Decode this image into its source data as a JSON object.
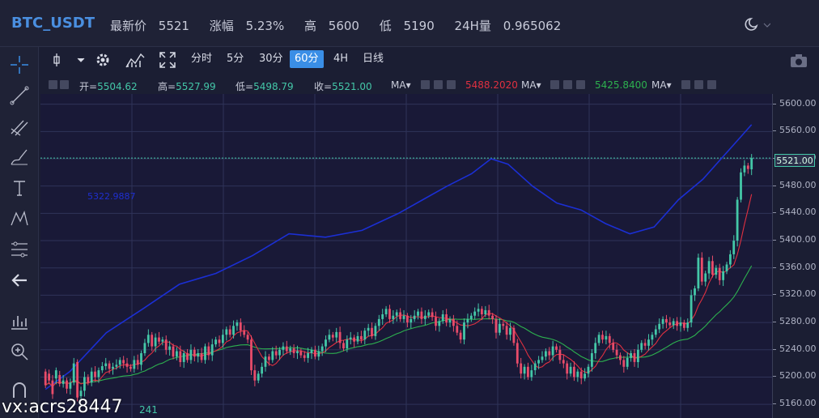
{
  "header": {
    "pair": "BTC_USDT",
    "last_label": "最新价",
    "last": "5521",
    "change_label": "涨幅",
    "change": "5.23%",
    "high_label": "高",
    "high": "5600",
    "low_label": "低",
    "low": "5190",
    "vol_label": "24H量",
    "vol": "0.965062"
  },
  "toolbar": {
    "intervals": [
      "分时",
      "5分",
      "30分",
      "60分",
      "4H",
      "日线"
    ],
    "active": "60分"
  },
  "legend": {
    "open_label": "开=",
    "open": "5504.62",
    "high_label": "高=",
    "high": "5527.99",
    "low_label": "低=",
    "low": "5498.79",
    "close_label": "收=",
    "close": "5521.00",
    "ma_label": "MA",
    "ma1": "5488.2020",
    "ma2": "5425.8400",
    "ma1_color": "#e03040",
    "ma2_color": "#2db14f"
  },
  "sub_indicator": "5322.9887",
  "chart_data": {
    "type": "candlestick",
    "y_ticks": [
      "5600.00",
      "5560.00",
      "5520.00",
      "5480.00",
      "5440.00",
      "5400.00",
      "5360.00",
      "5320.00",
      "5280.00",
      "5240.00",
      "5200.00",
      "5160.00"
    ],
    "ylim": [
      5140,
      5615
    ],
    "current_price": "5521.00",
    "up_color": "#44c7a8",
    "down_color": "#e94c6a",
    "blue_line_color": "#1b2fd4",
    "blue_line": [
      [
        0,
        5182
      ],
      [
        10,
        5208
      ],
      [
        25,
        5265
      ],
      [
        40,
        5300
      ],
      [
        55,
        5336
      ],
      [
        70,
        5352
      ],
      [
        85,
        5378
      ],
      [
        100,
        5410
      ],
      [
        115,
        5405
      ],
      [
        130,
        5415
      ],
      [
        145,
        5440
      ],
      [
        155,
        5460
      ],
      [
        165,
        5480
      ],
      [
        175,
        5498
      ],
      [
        183,
        5520
      ],
      [
        190,
        5512
      ],
      [
        200,
        5480
      ],
      [
        210,
        5455
      ],
      [
        220,
        5445
      ],
      [
        230,
        5425
      ],
      [
        240,
        5410
      ],
      [
        250,
        5420
      ],
      [
        260,
        5460
      ],
      [
        270,
        5490
      ],
      [
        280,
        5530
      ],
      [
        290,
        5570
      ]
    ],
    "candles": [
      [
        0,
        5208,
        5188
      ],
      [
        1,
        5205,
        5195
      ],
      [
        2,
        5195,
        5175
      ],
      [
        3,
        5198,
        5210
      ],
      [
        4,
        5203,
        5190
      ],
      [
        5,
        5190,
        5195
      ],
      [
        6,
        5195,
        5183
      ],
      [
        7,
        5183,
        5192
      ],
      [
        8,
        5192,
        5220
      ],
      [
        9,
        5222,
        5170
      ],
      [
        10,
        5172,
        5180
      ],
      [
        11,
        5180,
        5200
      ],
      [
        12,
        5200,
        5192
      ],
      [
        13,
        5192,
        5208
      ],
      [
        14,
        5208,
        5200
      ],
      [
        15,
        5200,
        5210
      ],
      [
        16,
        5210,
        5216
      ],
      [
        17,
        5216,
        5220
      ],
      [
        18,
        5220,
        5212
      ],
      [
        19,
        5212,
        5215
      ],
      [
        20,
        5215,
        5218
      ],
      [
        21,
        5218,
        5225
      ],
      [
        22,
        5225,
        5220
      ],
      [
        23,
        5220,
        5215
      ],
      [
        24,
        5215,
        5212
      ],
      [
        25,
        5212,
        5225
      ],
      [
        26,
        5225,
        5218
      ],
      [
        27,
        5218,
        5235
      ],
      [
        28,
        5235,
        5250
      ],
      [
        29,
        5250,
        5262
      ],
      [
        30,
        5262,
        5245
      ],
      [
        31,
        5245,
        5258
      ],
      [
        32,
        5258,
        5252
      ],
      [
        33,
        5252,
        5255
      ],
      [
        34,
        5255,
        5240
      ],
      [
        35,
        5240,
        5245
      ],
      [
        36,
        5245,
        5230
      ],
      [
        37,
        5230,
        5238
      ],
      [
        38,
        5238,
        5222
      ],
      [
        39,
        5222,
        5235
      ],
      [
        40,
        5235,
        5225
      ],
      [
        41,
        5225,
        5240
      ],
      [
        42,
        5240,
        5230
      ],
      [
        43,
        5230,
        5235
      ],
      [
        44,
        5235,
        5225
      ],
      [
        45,
        5225,
        5245
      ],
      [
        46,
        5245,
        5232
      ],
      [
        47,
        5232,
        5248
      ],
      [
        48,
        5248,
        5255
      ],
      [
        49,
        5255,
        5250
      ],
      [
        50,
        5250,
        5262
      ],
      [
        51,
        5262,
        5270
      ],
      [
        52,
        5270,
        5262
      ],
      [
        53,
        5262,
        5275
      ],
      [
        54,
        5275,
        5280
      ],
      [
        55,
        5280,
        5268
      ],
      [
        56,
        5268,
        5262
      ],
      [
        57,
        5262,
        5255
      ],
      [
        58,
        5255,
        5210
      ],
      [
        59,
        5210,
        5195
      ],
      [
        60,
        5195,
        5205
      ],
      [
        61,
        5205,
        5215
      ],
      [
        62,
        5215,
        5230
      ],
      [
        63,
        5230,
        5225
      ],
      [
        64,
        5225,
        5238
      ],
      [
        65,
        5238,
        5232
      ],
      [
        66,
        5232,
        5240
      ],
      [
        67,
        5240,
        5245
      ],
      [
        68,
        5245,
        5238
      ],
      [
        69,
        5238,
        5242
      ],
      [
        70,
        5242,
        5235
      ],
      [
        71,
        5235,
        5238
      ],
      [
        72,
        5238,
        5232
      ],
      [
        73,
        5232,
        5228
      ],
      [
        74,
        5228,
        5235
      ],
      [
        75,
        5235,
        5240
      ],
      [
        76,
        5240,
        5230
      ],
      [
        77,
        5230,
        5238
      ],
      [
        78,
        5238,
        5245
      ],
      [
        79,
        5245,
        5255
      ],
      [
        80,
        5255,
        5262
      ],
      [
        81,
        5262,
        5258
      ],
      [
        82,
        5258,
        5266
      ],
      [
        83,
        5266,
        5250
      ],
      [
        84,
        5250,
        5242
      ],
      [
        85,
        5242,
        5255
      ],
      [
        86,
        5255,
        5258
      ],
      [
        87,
        5258,
        5252
      ],
      [
        88,
        5252,
        5260
      ],
      [
        89,
        5260,
        5255
      ],
      [
        90,
        5255,
        5268
      ],
      [
        91,
        5268,
        5272
      ],
      [
        92,
        5272,
        5260
      ],
      [
        93,
        5260,
        5275
      ],
      [
        94,
        5275,
        5285
      ],
      [
        95,
        5285,
        5292
      ],
      [
        96,
        5292,
        5300
      ],
      [
        97,
        5300,
        5285
      ],
      [
        98,
        5285,
        5290
      ],
      [
        99,
        5290,
        5295
      ],
      [
        100,
        5295,
        5285
      ],
      [
        101,
        5285,
        5290
      ],
      [
        102,
        5290,
        5280
      ],
      [
        103,
        5280,
        5285
      ],
      [
        104,
        5285,
        5290
      ],
      [
        105,
        5290,
        5296
      ],
      [
        106,
        5296,
        5285
      ],
      [
        107,
        5285,
        5290
      ],
      [
        108,
        5290,
        5295
      ],
      [
        109,
        5295,
        5288
      ],
      [
        110,
        5288,
        5275
      ],
      [
        111,
        5275,
        5282
      ],
      [
        112,
        5282,
        5292
      ],
      [
        113,
        5292,
        5280
      ],
      [
        114,
        5280,
        5285
      ],
      [
        115,
        5285,
        5275
      ],
      [
        116,
        5275,
        5265
      ],
      [
        117,
        5265,
        5255
      ],
      [
        118,
        5255,
        5280
      ],
      [
        119,
        5280,
        5285
      ],
      [
        120,
        5285,
        5290
      ],
      [
        121,
        5290,
        5296
      ],
      [
        122,
        5296,
        5300
      ],
      [
        123,
        5300,
        5292
      ],
      [
        124,
        5292,
        5298
      ],
      [
        125,
        5298,
        5290
      ],
      [
        126,
        5290,
        5285
      ],
      [
        127,
        5285,
        5265
      ],
      [
        128,
        5265,
        5278
      ],
      [
        129,
        5278,
        5275
      ],
      [
        130,
        5275,
        5262
      ],
      [
        131,
        5262,
        5272
      ],
      [
        132,
        5272,
        5250
      ],
      [
        133,
        5250,
        5220
      ],
      [
        134,
        5220,
        5205
      ],
      [
        135,
        5205,
        5215
      ],
      [
        136,
        5215,
        5200
      ],
      [
        137,
        5200,
        5210
      ],
      [
        138,
        5210,
        5220
      ],
      [
        139,
        5220,
        5225
      ],
      [
        140,
        5225,
        5230
      ],
      [
        141,
        5230,
        5238
      ],
      [
        142,
        5238,
        5232
      ],
      [
        143,
        5232,
        5245
      ],
      [
        144,
        5245,
        5240
      ],
      [
        145,
        5240,
        5225
      ],
      [
        146,
        5225,
        5220
      ],
      [
        147,
        5220,
        5205
      ],
      [
        148,
        5205,
        5215
      ],
      [
        149,
        5215,
        5200
      ],
      [
        150,
        5200,
        5208
      ],
      [
        151,
        5208,
        5198
      ],
      [
        152,
        5198,
        5205
      ],
      [
        153,
        5205,
        5215
      ],
      [
        154,
        5215,
        5235
      ],
      [
        155,
        5235,
        5250
      ],
      [
        156,
        5250,
        5262
      ],
      [
        157,
        5262,
        5255
      ],
      [
        158,
        5255,
        5260
      ],
      [
        159,
        5260,
        5250
      ],
      [
        160,
        5250,
        5240
      ],
      [
        161,
        5240,
        5232
      ],
      [
        162,
        5232,
        5225
      ],
      [
        163,
        5225,
        5215
      ],
      [
        164,
        5215,
        5228
      ],
      [
        165,
        5228,
        5235
      ],
      [
        166,
        5235,
        5222
      ],
      [
        167,
        5222,
        5240
      ],
      [
        168,
        5240,
        5250
      ],
      [
        169,
        5250,
        5246
      ],
      [
        170,
        5246,
        5255
      ],
      [
        171,
        5255,
        5262
      ],
      [
        172,
        5262,
        5270
      ],
      [
        173,
        5270,
        5278
      ],
      [
        174,
        5278,
        5285
      ],
      [
        175,
        5285,
        5280
      ],
      [
        176,
        5280,
        5276
      ],
      [
        177,
        5276,
        5282
      ],
      [
        178,
        5282,
        5275
      ],
      [
        179,
        5275,
        5280
      ],
      [
        180,
        5280,
        5272
      ],
      [
        181,
        5272,
        5280
      ],
      [
        182,
        5280,
        5320
      ],
      [
        183,
        5320,
        5330
      ],
      [
        184,
        5330,
        5375
      ],
      [
        185,
        5375,
        5340
      ],
      [
        186,
        5340,
        5352
      ],
      [
        187,
        5352,
        5370
      ],
      [
        188,
        5370,
        5350
      ],
      [
        189,
        5350,
        5360
      ],
      [
        190,
        5360,
        5342
      ],
      [
        191,
        5342,
        5355
      ],
      [
        192,
        5355,
        5365
      ],
      [
        193,
        5365,
        5380
      ],
      [
        194,
        5380,
        5400
      ],
      [
        195,
        5400,
        5460
      ],
      [
        196,
        5460,
        5500
      ],
      [
        197,
        5500,
        5510
      ],
      [
        198,
        5510,
        5505
      ],
      [
        199,
        5504.62,
        5521
      ]
    ]
  },
  "volume_label": "241",
  "watermark": "vx:acrs28447"
}
